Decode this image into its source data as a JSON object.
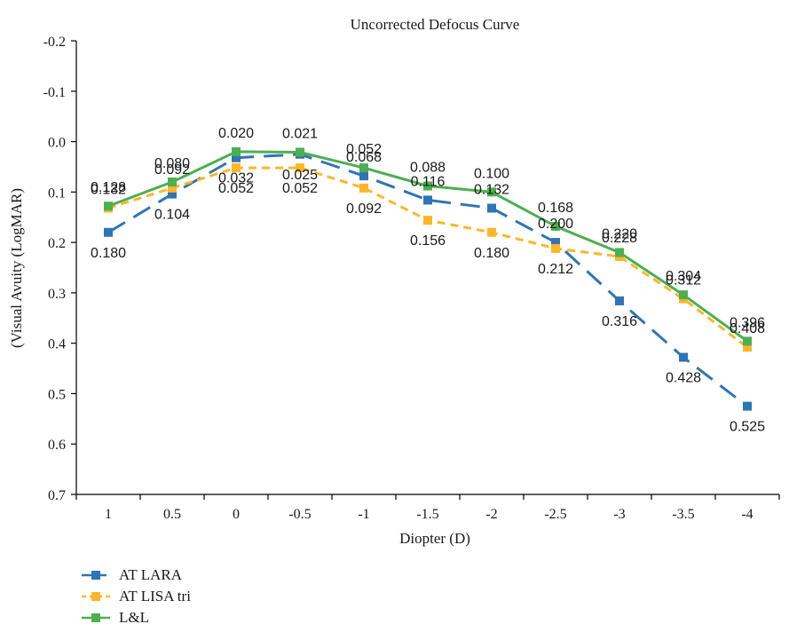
{
  "chart_data": {
    "type": "line",
    "title": "Uncorrected Defocus Curve",
    "xlabel": "Diopter (D)",
    "ylabel": "(Visual Avuity (LogMAR)",
    "categories": [
      "1",
      "0.5",
      "0",
      "-0.5",
      "-1",
      "-1.5",
      "-2",
      "-2.5",
      "-3",
      "-3.5",
      "-4"
    ],
    "ylim": [
      -0.2,
      0.7
    ],
    "y_inverted": true,
    "yticks": [
      "-0.2",
      "-0.1",
      "0.0",
      "0.1",
      "0.2",
      "0.3",
      "0.4",
      "0.5",
      "0.6",
      "0.7"
    ],
    "grid": false,
    "legend_position": "bottom-left",
    "series": [
      {
        "name": "AT LARA",
        "color": "#2e75b6",
        "dash": "long-dash",
        "values": [
          0.18,
          0.104,
          0.032,
          0.025,
          0.068,
          0.116,
          0.132,
          0.2,
          0.316,
          0.428,
          0.525
        ],
        "labels": [
          "0.180",
          "0.104",
          "0.032",
          "0.025",
          "0.068",
          "0.116",
          "0.132",
          "0.200",
          "0.316",
          "0.428",
          "0.525"
        ]
      },
      {
        "name": "AT LISA tri",
        "color": "#ffb627",
        "dash": "short-dash",
        "values": [
          0.132,
          0.092,
          0.052,
          0.052,
          0.092,
          0.156,
          0.18,
          0.212,
          0.228,
          0.312,
          0.408
        ],
        "labels": [
          "0.132",
          "0.092",
          "0.052",
          "0.052",
          "0.092",
          "0.156",
          "0.180",
          "0.212",
          "0.228",
          "0.312",
          "0.408"
        ]
      },
      {
        "name": "L&L",
        "color": "#4caf50",
        "dash": "solid",
        "values": [
          0.128,
          0.08,
          0.02,
          0.021,
          0.052,
          0.088,
          0.1,
          0.168,
          0.22,
          0.304,
          0.396
        ],
        "labels": [
          "0.128",
          "0.080",
          "0.020",
          "0.021",
          "0.052",
          "0.088",
          "0.100",
          "0.168",
          "0.220",
          "0.304",
          "0.396"
        ]
      }
    ]
  }
}
